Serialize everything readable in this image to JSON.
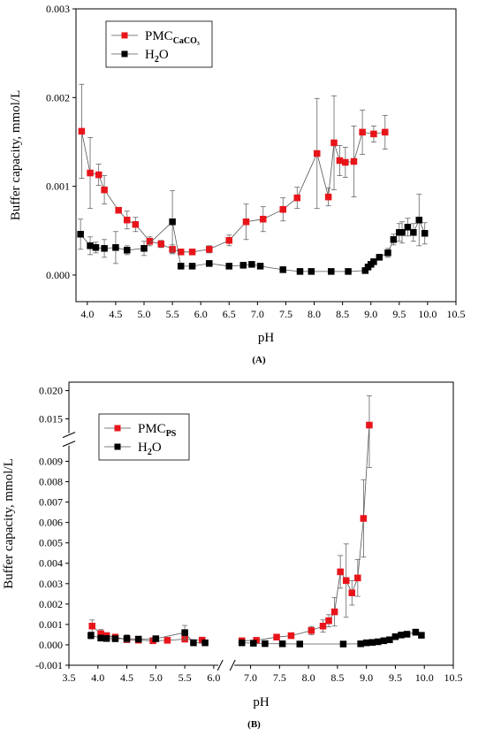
{
  "chart_data": [
    {
      "type": "line",
      "panel_label": "(A)",
      "xlabel": "pH",
      "ylabel": "Buffer capacity, mmol/L",
      "xlim": [
        3.8,
        10.5
      ],
      "ylim": [
        -0.0003,
        0.003
      ],
      "x_ticks": [
        "4.0",
        "4.5",
        "5.0",
        "5.5",
        "6.0",
        "6.5",
        "7.0",
        "7.5",
        "8.0",
        "8.5",
        "9.0",
        "9.5",
        "10.0",
        "10.5"
      ],
      "y_ticks": [
        "0.000",
        "0.001",
        "0.002",
        "0.003"
      ],
      "legend": {
        "position": "top-left",
        "entries": [
          {
            "main": "PMC",
            "sub": "CaCO₃",
            "color": "#e8141a"
          },
          {
            "main": "H",
            "sub": "2",
            "tail": "O",
            "color": "#000000"
          }
        ]
      },
      "series": [
        {
          "name": "PMC CaCO3",
          "color": "#e8141a",
          "x": [
            3.9,
            4.05,
            4.2,
            4.3,
            4.55,
            4.7,
            4.85,
            5.1,
            5.3,
            5.5,
            5.65,
            5.85,
            6.15,
            6.5,
            6.8,
            7.1,
            7.45,
            7.7,
            8.05,
            8.25,
            8.35,
            8.45,
            8.55,
            8.7,
            8.85,
            9.05,
            9.25
          ],
          "y": [
            0.00162,
            0.00115,
            0.00113,
            0.00096,
            0.00073,
            0.00062,
            0.00057,
            0.00038,
            0.00035,
            0.00029,
            0.00026,
            0.00026,
            0.00029,
            0.00039,
            0.0006,
            0.00063,
            0.00074,
            0.00087,
            0.00137,
            0.00088,
            0.00149,
            0.00129,
            0.00127,
            0.00128,
            0.00161,
            0.00159,
            0.00161
          ],
          "err": [
            0.00053,
            0.0004,
            0.00012,
            0.00016,
            2e-05,
            0.0001,
            8e-05,
            5e-05,
            4e-05,
            5e-05,
            1e-05,
            2e-05,
            4e-05,
            6e-05,
            0.0002,
            0.00014,
            0.00013,
            0.00012,
            0.00062,
            0.0001,
            0.00053,
            0.00017,
            0.00017,
            0.0004,
            0.00025,
            9e-05,
            0.00019
          ]
        },
        {
          "name": "H2O",
          "color": "#000000",
          "x": [
            3.88,
            4.05,
            4.15,
            4.3,
            4.5,
            4.7,
            5.0,
            5.5,
            5.65,
            5.85,
            6.15,
            6.5,
            6.75,
            6.9,
            7.05,
            7.45,
            7.75,
            7.95,
            8.3,
            8.6,
            8.9,
            8.95,
            9.0,
            9.05,
            9.15,
            9.3,
            9.4,
            9.5,
            9.55,
            9.65,
            9.75,
            9.85,
            9.95
          ],
          "y": [
            0.00046,
            0.00033,
            0.00031,
            0.0003,
            0.00031,
            0.00028,
            0.0003,
            0.0006,
            0.0001,
            0.0001,
            0.00013,
            0.0001,
            0.00011,
            0.00012,
            0.0001,
            6e-05,
            4e-05,
            4e-05,
            4e-05,
            4e-05,
            5e-05,
            9e-05,
            0.00012,
            0.00015,
            0.0002,
            0.00025,
            0.0004,
            0.00048,
            0.00048,
            0.00054,
            0.00048,
            0.00062,
            0.00047
          ],
          "err": [
            0.00017,
            0.0001,
            6e-05,
            0.0001,
            0.00018,
            5e-05,
            8e-05,
            0.00035,
            3e-05,
            3e-05,
            3e-05,
            3e-05,
            3e-05,
            2e-05,
            2e-05,
            2e-05,
            1e-05,
            1e-05,
            1e-05,
            1e-05,
            2e-05,
            3e-05,
            3e-05,
            3e-05,
            3e-05,
            5e-05,
            6e-05,
            0.0001,
            0.00012,
            0.0001,
            0.0001,
            0.00029,
            0.00012
          ]
        }
      ]
    },
    {
      "type": "line",
      "panel_label": "(B)",
      "xlabel": "pH",
      "ylabel": "Buffer capacity, mmol/L",
      "xlim": [
        3.5,
        10.5
      ],
      "x_break": [
        6.05,
        6.75
      ],
      "ylim": [
        -0.001,
        0.0215
      ],
      "y_break": [
        0.0096,
        0.0131
      ],
      "x_ticks": [
        "3.5",
        "4.0",
        "4.5",
        "5.0",
        "5.5",
        "6.0",
        "7.0",
        "7.5",
        "8.0",
        "8.5",
        "9.0",
        "9.5",
        "10.0",
        "10.5"
      ],
      "y_ticks": [
        "-0.001",
        "0.000",
        "0.001",
        "0.002",
        "0.003",
        "0.004",
        "0.005",
        "0.006",
        "0.007",
        "0.008",
        "0.009",
        "0.015",
        "0.020"
      ],
      "legend": {
        "position": "top-left",
        "entries": [
          {
            "main": "PMC",
            "sub": "PS",
            "color": "#e8141a"
          },
          {
            "main": "H",
            "sub": "2",
            "tail": "O",
            "color": "#000000"
          }
        ]
      },
      "series": [
        {
          "name": "PMC PS",
          "color": "#e8141a",
          "x": [
            3.9,
            4.05,
            4.15,
            4.3,
            4.5,
            4.7,
            4.95,
            5.2,
            5.5,
            5.8,
            6.85,
            7.1,
            7.45,
            7.7,
            8.05,
            8.25,
            8.35,
            8.45,
            8.55,
            8.65,
            8.75,
            8.85,
            8.95,
            9.05
          ],
          "y": [
            0.00092,
            0.00055,
            0.00045,
            0.00038,
            0.00025,
            0.00023,
            0.0002,
            0.00022,
            0.00028,
            0.00023,
            0.0002,
            0.00022,
            0.00038,
            0.00045,
            0.0007,
            0.00092,
            0.00118,
            0.00162,
            0.00358,
            0.00315,
            0.00255,
            0.00328,
            0.0062,
            0.0139
          ],
          "err": [
            0.0003,
            0.0002,
            0.00015,
            0.0001,
            0.0001,
            0.0001,
            0.0001,
            0.0001,
            0.0001,
            0.0001,
            0.0001,
            0.0001,
            0.0001,
            0.0001,
            0.0002,
            0.0003,
            0.0003,
            0.0007,
            0.0008,
            0.0018,
            0.0006,
            0.0009,
            0.0019,
            0.0052
          ]
        },
        {
          "name": "H2O",
          "color": "#000000",
          "x": [
            3.88,
            4.05,
            4.15,
            4.3,
            4.5,
            4.7,
            5.0,
            5.5,
            5.65,
            5.85,
            6.85,
            7.05,
            7.25,
            7.55,
            7.85,
            8.6,
            8.9,
            9.0,
            9.1,
            9.2,
            9.3,
            9.4,
            9.5,
            9.6,
            9.7,
            9.85,
            9.95
          ],
          "y": [
            0.00046,
            0.00033,
            0.00031,
            0.0003,
            0.00031,
            0.00028,
            0.0003,
            0.0006,
            0.0001,
            0.0001,
            0.0001,
            8e-05,
            6e-05,
            5e-05,
            4e-05,
            4e-05,
            5e-05,
            0.0001,
            0.00012,
            0.00015,
            0.0002,
            0.00025,
            0.0004,
            0.00048,
            0.00052,
            0.00062,
            0.00047
          ],
          "err": [
            0.00017,
            0.0001,
            6e-05,
            0.0001,
            0.00018,
            5e-05,
            8e-05,
            0.00035,
            3e-05,
            3e-05,
            3e-05,
            2e-05,
            2e-05,
            2e-05,
            1e-05,
            1e-05,
            2e-05,
            3e-05,
            3e-05,
            3e-05,
            3e-05,
            5e-05,
            6e-05,
            0.0001,
            0.0001,
            0.00015,
            8e-05
          ]
        }
      ]
    }
  ]
}
